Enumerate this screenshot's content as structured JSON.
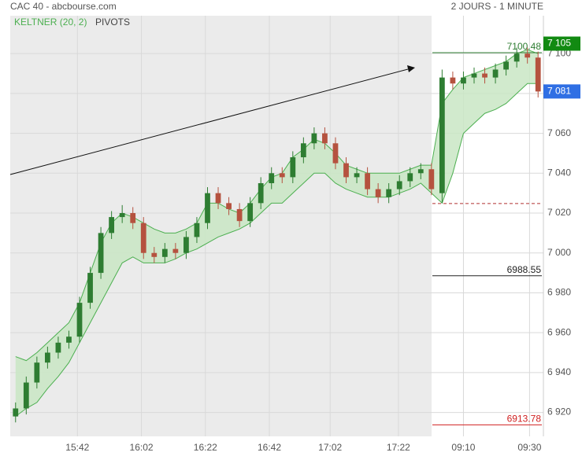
{
  "chart_data": {
    "type": "candlestick",
    "title": "CAC 40 - abcbourse.com",
    "subtitle": "2 JOURS - 1 MINUTE",
    "pivots_label": "PIVOTS",
    "x": [
      0,
      1,
      2,
      3,
      4,
      5,
      6,
      7,
      8,
      9,
      10,
      11,
      12,
      13,
      14,
      15,
      16,
      17,
      18,
      19,
      20,
      21,
      22,
      23,
      24,
      25,
      26,
      27,
      28,
      29,
      30,
      31,
      32,
      33,
      34,
      35,
      36,
      37,
      38,
      39,
      40,
      41,
      42,
      43,
      44,
      45,
      46,
      47,
      48,
      49
    ],
    "open": [
      6918,
      6922,
      6935,
      6945,
      6950,
      6955,
      6958,
      6975,
      6990,
      7010,
      7018,
      7020,
      7015,
      7000,
      6998,
      7002,
      7000,
      7008,
      7015,
      7030,
      7025,
      7022,
      7016,
      7025,
      7035,
      7040,
      7038,
      7048,
      7055,
      7060,
      7055,
      7045,
      7038,
      7040,
      7032,
      7028,
      7032,
      7036,
      7040,
      7042,
      7030,
      7088,
      7085,
      7088,
      7090,
      7088,
      7092,
      7096,
      7100,
      7098
    ],
    "high": [
      6925,
      6938,
      6948,
      6953,
      6958,
      6961,
      6978,
      6993,
      7013,
      7021,
      7024,
      7023,
      7018,
      7003,
      7005,
      7005,
      7011,
      7018,
      7033,
      7033,
      7028,
      7025,
      7028,
      7038,
      7043,
      7043,
      7051,
      7058,
      7063,
      7063,
      7058,
      7048,
      7043,
      7043,
      7035,
      7035,
      7039,
      7043,
      7045,
      7045,
      7092,
      7091,
      7091,
      7093,
      7093,
      7095,
      7099,
      7103,
      7103,
      7101
    ],
    "low": [
      6915,
      6919,
      6932,
      6942,
      6947,
      6952,
      6955,
      6972,
      6987,
      7007,
      7015,
      7012,
      6997,
      6995,
      6995,
      6997,
      6997,
      7005,
      7012,
      7022,
      7019,
      7013,
      7013,
      7022,
      7032,
      7035,
      7035,
      7045,
      7052,
      7052,
      7042,
      7035,
      7035,
      7029,
      7025,
      7025,
      7029,
      7033,
      7037,
      7029,
      7025,
      7082,
      7082,
      7085,
      7085,
      7085,
      7089,
      7093,
      7095,
      7078
    ],
    "close": [
      6922,
      6935,
      6945,
      6950,
      6955,
      6958,
      6975,
      6990,
      7010,
      7018,
      7020,
      7015,
      7000,
      6998,
      7002,
      7000,
      7008,
      7015,
      7030,
      7025,
      7022,
      7016,
      7025,
      7035,
      7040,
      7038,
      7048,
      7055,
      7060,
      7055,
      7045,
      7038,
      7040,
      7032,
      7028,
      7032,
      7036,
      7040,
      7042,
      7032,
      7088,
      7085,
      7088,
      7090,
      7088,
      7092,
      7096,
      7100,
      7098,
      7081
    ],
    "up_color": "#2e7d32",
    "down_color": "#b5523f",
    "keltner": {
      "name": "KELTNER (20, 2)",
      "color": "#4caf50",
      "fill": "#c9e6c4",
      "upper": [
        6948,
        6946,
        6950,
        6955,
        6960,
        6965,
        6975,
        6990,
        7005,
        7015,
        7020,
        7018,
        7015,
        7012,
        7010,
        7010,
        7012,
        7015,
        7025,
        7025,
        7022,
        7020,
        7025,
        7032,
        7038,
        7040,
        7048,
        7052,
        7057,
        7055,
        7050,
        7044,
        7042,
        7040,
        7040,
        7040,
        7040,
        7042,
        7044,
        7044,
        7075,
        7082,
        7088,
        7090,
        7092,
        7094,
        7096,
        7100,
        7102,
        7100
      ],
      "lower": [
        6918,
        6922,
        6925,
        6932,
        6938,
        6945,
        6955,
        6965,
        6975,
        6985,
        6995,
        6998,
        6995,
        6995,
        6995,
        6997,
        7000,
        7002,
        7005,
        7008,
        7010,
        7012,
        7015,
        7020,
        7025,
        7025,
        7030,
        7035,
        7040,
        7040,
        7035,
        7032,
        7030,
        7028,
        7028,
        7028,
        7030,
        7032,
        7035,
        7030,
        7025,
        7040,
        7060,
        7065,
        7070,
        7072,
        7075,
        7080,
        7085,
        7085
      ]
    },
    "pivots": [
      {
        "value": 7100.48,
        "color": "#2e7d32"
      },
      {
        "value": 7024.8,
        "color": "#b03030",
        "dashed": true
      },
      {
        "value": 6988.55,
        "color": "#222222"
      },
      {
        "value": 6913.78,
        "color": "#d02020"
      }
    ],
    "price_tags": [
      {
        "value": 7105,
        "label": "7 105",
        "color": "#128a12"
      },
      {
        "value": 7081,
        "label": "7 081",
        "color": "#2f6fe4"
      }
    ],
    "xlim": [
      -0.5,
      49.5
    ],
    "xticks": [
      {
        "value": 5.8,
        "label": "15:42"
      },
      {
        "value": 11.8,
        "label": "16:02"
      },
      {
        "value": 17.8,
        "label": "16:22"
      },
      {
        "value": 23.8,
        "label": "16:42"
      },
      {
        "value": 29.5,
        "label": "17:02"
      },
      {
        "value": 35.9,
        "label": "17:22"
      },
      {
        "value": 42.0,
        "label": "09:10"
      },
      {
        "value": 48.2,
        "label": "09:30"
      }
    ],
    "ylim": [
      6908,
      7119
    ],
    "yticks": [
      {
        "value": 6920,
        "label": "6 920"
      },
      {
        "value": 6940,
        "label": "6 940"
      },
      {
        "value": 6960,
        "label": "6 960"
      },
      {
        "value": 6980,
        "label": "6 980"
      },
      {
        "value": 7000,
        "label": "7 000"
      },
      {
        "value": 7020,
        "label": "7 020"
      },
      {
        "value": 7040,
        "label": "7 040"
      },
      {
        "value": 7060,
        "label": "7 060"
      },
      {
        "value": 7080,
        "label": "7 080"
      },
      {
        "value": 7100,
        "label": "7 100"
      }
    ],
    "grid": true
  }
}
